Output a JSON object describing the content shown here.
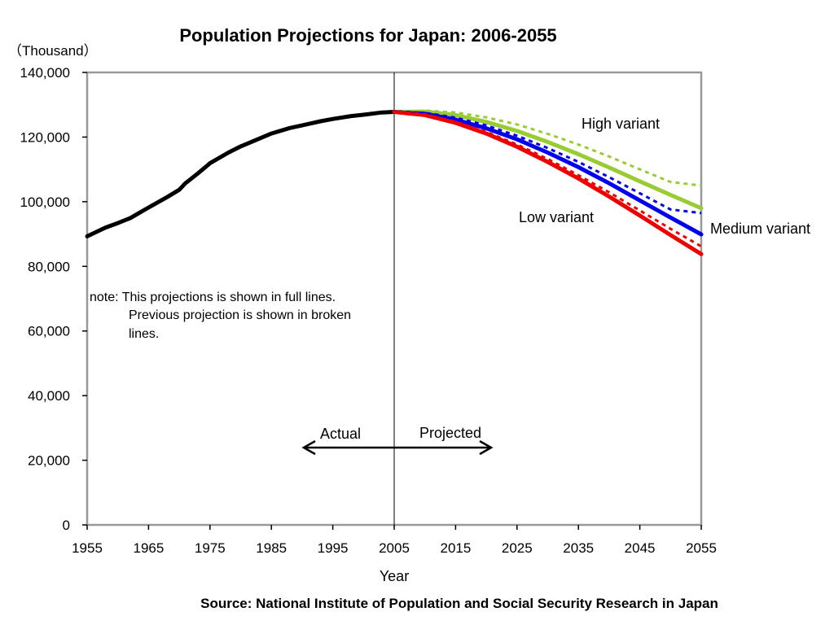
{
  "chart_data": {
    "type": "line",
    "title": "Population Projections for Japan: 2006-2055",
    "unit_label": "（Thousand）",
    "xlabel": "Year",
    "ylabel": "",
    "xlim": [
      1955,
      2055
    ],
    "ylim": [
      0,
      140000
    ],
    "x_ticks": [
      1955,
      1965,
      1975,
      1985,
      1995,
      2005,
      2015,
      2025,
      2035,
      2045,
      2055
    ],
    "x_tick_labels": [
      "1955",
      "1965",
      "1975",
      "1985",
      "1995",
      "2005",
      "2015",
      "2025",
      "2035",
      "2045",
      "2055"
    ],
    "y_ticks": [
      0,
      20000,
      40000,
      60000,
      80000,
      100000,
      120000,
      140000
    ],
    "y_tick_labels": [
      "0",
      "20,000",
      "40,000",
      "60,000",
      "80,000",
      "100,000",
      "120,000",
      "140,000"
    ],
    "grid": false,
    "divider_year": 2005,
    "series": [
      {
        "style": "solid",
        "color": "#000000",
        "x": [
          1955,
          1958,
          1960,
          1962,
          1965,
          1968,
          1970,
          1971,
          1973,
          1975,
          1978,
          1980,
          1983,
          1985,
          1988,
          1990,
          1993,
          1995,
          1998,
          2000,
          2003,
          2005
        ],
        "y": [
          89300,
          92000,
          93400,
          94900,
          98200,
          101400,
          103700,
          105700,
          108700,
          111900,
          115200,
          117100,
          119500,
          121100,
          122800,
          123600,
          124900,
          125600,
          126500,
          126900,
          127600,
          127800
        ]
      },
      {
        "style": "solid",
        "color": "#99cc33",
        "x": [
          2005,
          2010,
          2015,
          2020,
          2025,
          2030,
          2035,
          2040,
          2045,
          2050,
          2055
        ],
        "y": [
          127800,
          127900,
          126800,
          124700,
          121900,
          118500,
          114700,
          110600,
          106300,
          102100,
          98000
        ]
      },
      {
        "style": "solid",
        "color": "#0000ee",
        "x": [
          2005,
          2010,
          2015,
          2020,
          2025,
          2030,
          2035,
          2040,
          2045,
          2050,
          2055
        ],
        "y": [
          127800,
          127200,
          125400,
          122700,
          119300,
          115200,
          110700,
          105700,
          100400,
          95100,
          89900
        ]
      },
      {
        "style": "solid",
        "color": "#ee0000",
        "x": [
          2005,
          2010,
          2015,
          2020,
          2025,
          2030,
          2035,
          2040,
          2045,
          2050,
          2055
        ],
        "y": [
          127800,
          126800,
          124400,
          121100,
          117000,
          112300,
          107200,
          101600,
          95700,
          89700,
          83800
        ]
      },
      {
        "style": "dashed",
        "color": "#99cc33",
        "x": [
          2005,
          2010,
          2015,
          2020,
          2025,
          2030,
          2035,
          2040,
          2045,
          2050,
          2055
        ],
        "y": [
          127800,
          128200,
          127600,
          126100,
          123900,
          121000,
          117700,
          114000,
          110000,
          106100,
          105000
        ]
      },
      {
        "style": "dashed",
        "color": "#0000ee",
        "x": [
          2005,
          2010,
          2015,
          2020,
          2025,
          2030,
          2035,
          2040,
          2045,
          2050,
          2055
        ],
        "y": [
          127800,
          127500,
          126000,
          123600,
          120400,
          116600,
          112300,
          107600,
          102600,
          97600,
          96500
        ]
      },
      {
        "style": "dashed",
        "color": "#ee0000",
        "x": [
          2005,
          2010,
          2015,
          2020,
          2025,
          2030,
          2035,
          2040,
          2045,
          2050,
          2055
        ],
        "y": [
          127800,
          126900,
          124800,
          121600,
          117700,
          113200,
          108200,
          102900,
          97300,
          91600,
          86200
        ]
      }
    ],
    "annotations": {
      "high_variant": "High variant",
      "low_variant": "Low variant",
      "medium_variant": "Medium variant",
      "note_line1": "note: This projections is shown in full lines.",
      "note_line2": "Previous projection is shown in broken",
      "note_line3": "lines.",
      "actual": "Actual",
      "projected": "Projected"
    },
    "source": "Source: National Institute of Population and Social Security Research in Japan"
  }
}
